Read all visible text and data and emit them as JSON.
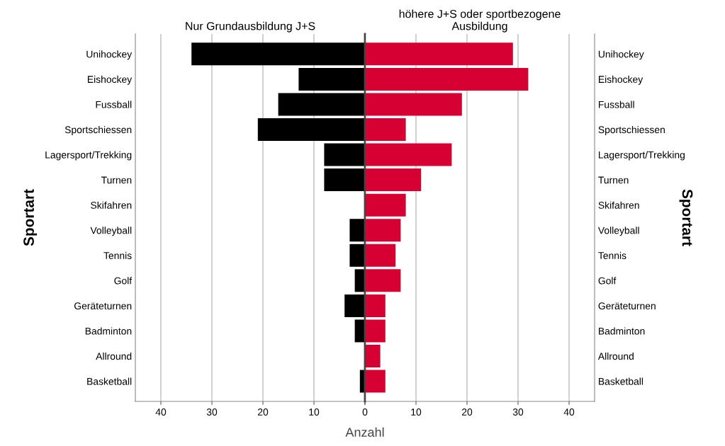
{
  "chart_data": [
    {
      "type": "bar",
      "orientation": "horizontal",
      "title": "Nur Grundausbildung J+S",
      "ylabel": "Sportart",
      "xlabel": "Anzahl",
      "categories": [
        "Unihockey",
        "Eishockey",
        "Fussball",
        "Sportschiessen",
        "Lagersport/Trekking",
        "Turnen",
        "Skifahren",
        "Volleyball",
        "Tennis",
        "Golf",
        "Geräteturnen",
        "Badminton",
        "Allround",
        "Basketball"
      ],
      "values": [
        34,
        13,
        17,
        21,
        8,
        8,
        null,
        3,
        3,
        2,
        4,
        2,
        null,
        1
      ],
      "color": "#000000",
      "xlim": [
        45,
        0
      ],
      "xticks": [
        40,
        30,
        20,
        10,
        {
          "value": 0,
          "label": null
        }
      ],
      "grid": "x"
    },
    {
      "type": "bar",
      "orientation": "horizontal",
      "title": "höhere J+S oder sportbezogene\nAusbildung",
      "ylabel": "Sportart",
      "categories": [
        "Unihockey",
        "Eishockey",
        "Fussball",
        "Sportschiessen",
        "Lagersport/Trekking",
        "Turnen",
        "Skifahren",
        "Volleyball",
        "Tennis",
        "Golf",
        "Geräteturnen",
        "Badminton",
        "Allround",
        "Basketball"
      ],
      "values": [
        29,
        32,
        19,
        8,
        17,
        11,
        8,
        7,
        6,
        7,
        4,
        4,
        3,
        4
      ],
      "color": "#d70033",
      "xlim": [
        0,
        45
      ],
      "xticks": [
        0,
        10,
        20,
        30,
        40
      ],
      "grid": "x"
    }
  ]
}
